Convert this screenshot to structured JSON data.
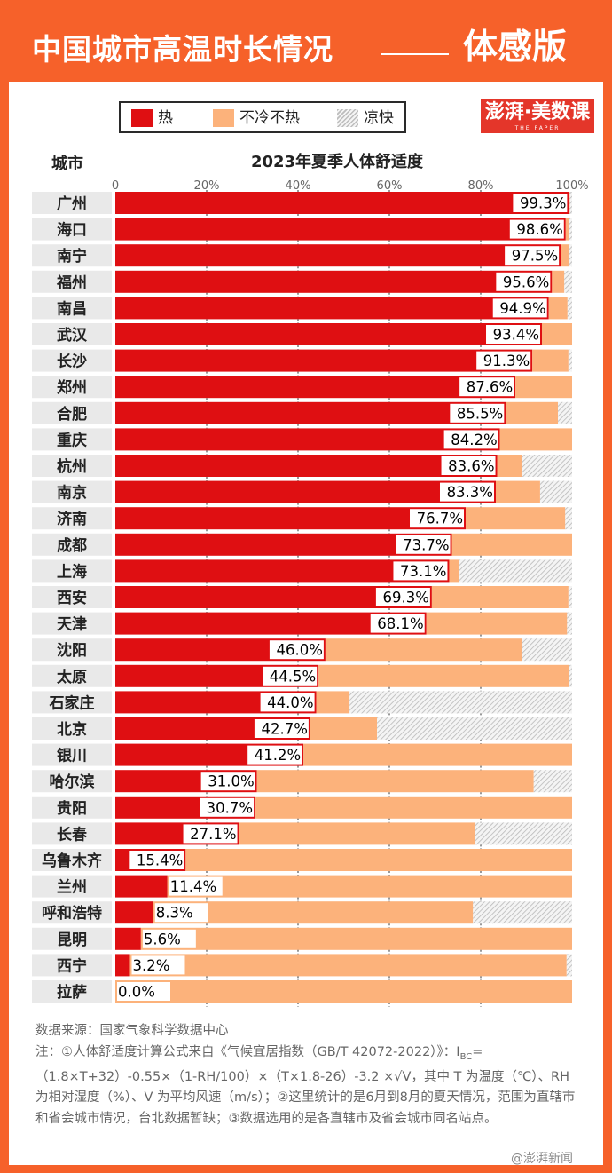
{
  "header": {
    "title": "中国城市高温时长情况",
    "subtitle": "体感版"
  },
  "legend": {
    "items": [
      {
        "label": "热",
        "color": "#df0f12"
      },
      {
        "label": "不冷不热",
        "color": "#fcb27b"
      },
      {
        "label": "凉快",
        "color": "hatched-gray"
      }
    ]
  },
  "logo": {
    "text": "澎湃·美数课",
    "sub": "THE PAPER"
  },
  "column_header": "城市",
  "chart_data": {
    "type": "bar",
    "orientation": "horizontal",
    "stacked": true,
    "title": "2023年夏季人体舒适度",
    "x_ticks": [
      "0",
      "20%",
      "40%",
      "60%",
      "80%",
      "100%"
    ],
    "xlim": [
      0,
      100
    ],
    "categories": [
      "广州",
      "海口",
      "南宁",
      "福州",
      "南昌",
      "武汉",
      "长沙",
      "郑州",
      "合肥",
      "重庆",
      "杭州",
      "南京",
      "济南",
      "成都",
      "上海",
      "西安",
      "天津",
      "沈阳",
      "太原",
      "石家庄",
      "北京",
      "银川",
      "哈尔滨",
      "贵阳",
      "长春",
      "乌鲁木齐",
      "兰州",
      "呼和浩特",
      "昆明",
      "西宁",
      "拉萨"
    ],
    "series": [
      {
        "name": "热",
        "color": "#df0f12",
        "values": [
          99.3,
          98.6,
          97.5,
          95.6,
          94.9,
          93.4,
          91.3,
          87.6,
          85.5,
          84.2,
          83.6,
          83.3,
          76.7,
          73.7,
          73.1,
          69.3,
          68.1,
          46.0,
          44.5,
          44.0,
          42.7,
          41.2,
          31.0,
          30.7,
          27.1,
          15.4,
          11.4,
          8.3,
          5.6,
          3.2,
          0.0
        ]
      },
      {
        "name": "不冷不热",
        "color": "#fcb27b",
        "values": [
          0.2,
          0.7,
          1.8,
          2.7,
          4.1,
          6.6,
          7.9,
          12.4,
          11.4,
          15.8,
          5.4,
          9.7,
          21.8,
          26.3,
          2.2,
          29.9,
          30.8,
          43.0,
          54.9,
          7.3,
          14.6,
          58.8,
          60.6,
          69.3,
          51.7,
          84.6,
          88.6,
          70.0,
          94.4,
          95.6,
          100.0
        ]
      },
      {
        "name": "凉快",
        "color": "hatched",
        "values": [
          0.5,
          0.7,
          0.7,
          1.7,
          1.0,
          0.0,
          0.8,
          0.0,
          3.1,
          0.0,
          11.0,
          7.0,
          1.5,
          0.0,
          24.7,
          0.8,
          1.1,
          11.0,
          0.6,
          48.7,
          42.7,
          0.0,
          8.4,
          0.0,
          21.2,
          0.0,
          0.0,
          21.7,
          0.0,
          1.2,
          0.0
        ]
      }
    ],
    "data_labels": [
      "99.3%",
      "98.6%",
      "97.5%",
      "95.6%",
      "94.9%",
      "93.4%",
      "91.3%",
      "87.6%",
      "85.5%",
      "84.2%",
      "83.6%",
      "83.3%",
      "76.7%",
      "73.7%",
      "73.1%",
      "69.3%",
      "68.1%",
      "46.0%",
      "44.5%",
      "44.0%",
      "42.7%",
      "41.2%",
      "31.0%",
      "30.7%",
      "27.1%",
      "15.4%",
      "11.4%",
      "8.3%",
      "5.6%",
      "3.2%",
      "0.0%"
    ],
    "grid": true,
    "legend_position": "top"
  },
  "footer": {
    "source": "数据来源：国家气象科学数据中心",
    "note_1": "注：①人体舒适度计算公式来自《气候宜居指数（GB/T 42072-2022）》：I",
    "note_sub": "BC",
    "note_2": "=（1.8×T+32）-0.55×（1-RH/100）×（T×1.8-26）-3.2 ×√V，其中 T 为温度（℃）、RH 为相对湿度（%）、V 为平均风速（m/s）；②这里统计的是6月到8月的夏天情况，范围为直辖市和省会城市情况，台北数据暂缺；③数据选用的是各直辖市及省会城市同名站点。"
  },
  "watermark": "@澎湃新闻"
}
